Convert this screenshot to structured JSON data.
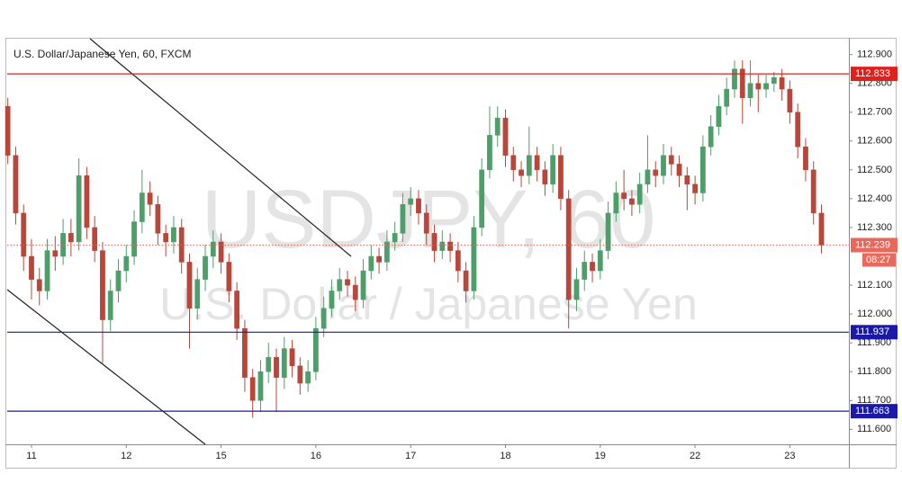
{
  "chart_data": {
    "type": "candlestick",
    "title": "U.S. Dollar/Japanese Yen, 60, FXCM",
    "watermark": "USDJPY, 60",
    "watermark_subtitle": "U.S. Dollar / Japanese Yen",
    "up_color": "#4e9e6a",
    "down_color": "#b8463a",
    "xlim": [
      -6.15,
      206.95
    ],
    "ylim": [
      111.548,
      112.955
    ],
    "xticks": [
      {
        "value": 0,
        "label": "11"
      },
      {
        "value": 24,
        "label": "12"
      },
      {
        "value": 48,
        "label": "15"
      },
      {
        "value": 72,
        "label": "16"
      },
      {
        "value": 96,
        "label": "17"
      },
      {
        "value": 120,
        "label": "18"
      },
      {
        "value": 144,
        "label": "19"
      },
      {
        "value": 168,
        "label": "22"
      },
      {
        "value": 192,
        "label": "23"
      }
    ],
    "yticks": [
      {
        "value": 112.9,
        "label": "112.900"
      },
      {
        "value": 112.8,
        "label": "112.800"
      },
      {
        "value": 112.7,
        "label": "112.700"
      },
      {
        "value": 112.6,
        "label": "112.600"
      },
      {
        "value": 112.5,
        "label": "112.500"
      },
      {
        "value": 112.4,
        "label": "112.400"
      },
      {
        "value": 112.3,
        "label": "112.300"
      },
      {
        "value": 112.1,
        "label": "112.100"
      },
      {
        "value": 112.0,
        "label": "112.000"
      },
      {
        "value": 111.9,
        "label": "111.900"
      },
      {
        "value": 111.8,
        "label": "111.800"
      },
      {
        "value": 111.7,
        "label": "111.700"
      },
      {
        "value": 111.6,
        "label": "111.600"
      }
    ],
    "hlines": [
      {
        "value": 112.833,
        "color": "#e0201c"
      },
      {
        "value": 111.937,
        "color": "#1a1aa6"
      },
      {
        "value": 111.663,
        "color": "#1a1aa6"
      }
    ],
    "last_price": {
      "value": 112.239,
      "color": "#e8685c",
      "countdown": "08:27"
    },
    "x": [
      -6,
      -4,
      -2,
      0,
      2,
      4,
      6,
      8,
      10,
      12,
      14,
      16,
      18,
      20,
      22,
      24,
      26,
      28,
      30,
      32,
      34,
      36,
      38,
      40,
      42,
      44,
      46,
      48,
      50,
      52,
      54,
      56,
      58,
      60,
      62,
      64,
      66,
      68,
      70,
      72,
      74,
      76,
      78,
      80,
      82,
      84,
      86,
      88,
      90,
      92,
      94,
      96,
      98,
      100,
      102,
      104,
      106,
      108,
      110,
      112,
      114,
      116,
      118,
      120,
      122,
      124,
      126,
      128,
      130,
      132,
      134,
      136,
      138,
      140,
      142,
      144,
      146,
      148,
      150,
      152,
      154,
      156,
      158,
      160,
      162,
      164,
      166,
      168,
      170,
      172,
      174,
      176,
      178,
      180,
      182,
      184,
      186,
      188,
      190,
      192,
      194,
      196,
      198,
      200
    ],
    "ohlc": [
      [
        112.72,
        112.75,
        112.52,
        112.55
      ],
      [
        112.55,
        112.58,
        112.31,
        112.35
      ],
      [
        112.35,
        112.38,
        112.15,
        112.2
      ],
      [
        112.2,
        112.26,
        112.05,
        112.12
      ],
      [
        112.12,
        112.16,
        112.03,
        112.08
      ],
      [
        112.08,
        112.26,
        112.05,
        112.22
      ],
      [
        112.22,
        112.27,
        112.15,
        112.2
      ],
      [
        112.2,
        112.33,
        112.17,
        112.28
      ],
      [
        112.28,
        112.33,
        112.2,
        112.25
      ],
      [
        112.25,
        112.54,
        112.22,
        112.48
      ],
      [
        112.48,
        112.51,
        112.26,
        112.3
      ],
      [
        112.3,
        112.34,
        112.18,
        112.22
      ],
      [
        112.22,
        112.25,
        111.83,
        111.98
      ],
      [
        111.98,
        112.12,
        111.94,
        112.08
      ],
      [
        112.08,
        112.19,
        112.04,
        112.15
      ],
      [
        112.15,
        112.24,
        112.11,
        112.2
      ],
      [
        112.2,
        112.36,
        112.17,
        112.32
      ],
      [
        112.32,
        112.5,
        112.28,
        112.42
      ],
      [
        112.42,
        112.46,
        112.34,
        112.38
      ],
      [
        112.38,
        112.41,
        112.24,
        112.28
      ],
      [
        112.28,
        112.31,
        112.2,
        112.25
      ],
      [
        112.25,
        112.34,
        112.21,
        112.3
      ],
      [
        112.3,
        112.33,
        112.14,
        112.18
      ],
      [
        112.18,
        112.21,
        111.88,
        112.02
      ],
      [
        112.02,
        112.16,
        111.98,
        112.12
      ],
      [
        112.12,
        112.24,
        112.08,
        112.2
      ],
      [
        112.2,
        112.29,
        112.16,
        112.25
      ],
      [
        112.25,
        112.28,
        112.14,
        112.18
      ],
      [
        112.18,
        112.21,
        112.04,
        112.08
      ],
      [
        112.08,
        112.11,
        111.91,
        111.95
      ],
      [
        111.95,
        111.98,
        111.73,
        111.78
      ],
      [
        111.78,
        111.81,
        111.64,
        111.7
      ],
      [
        111.7,
        111.84,
        111.66,
        111.8
      ],
      [
        111.8,
        111.9,
        111.76,
        111.85
      ],
      [
        111.85,
        111.88,
        111.66,
        111.78
      ],
      [
        111.78,
        111.92,
        111.74,
        111.88
      ],
      [
        111.88,
        111.91,
        111.78,
        111.82
      ],
      [
        111.82,
        111.85,
        111.72,
        111.76
      ],
      [
        111.76,
        111.84,
        111.73,
        111.8
      ],
      [
        111.8,
        111.99,
        111.77,
        111.95
      ],
      [
        111.95,
        112.06,
        111.92,
        112.02
      ],
      [
        112.02,
        112.12,
        111.99,
        112.08
      ],
      [
        112.08,
        112.16,
        112.05,
        112.12
      ],
      [
        112.12,
        112.15,
        112.06,
        112.1
      ],
      [
        112.1,
        112.13,
        112.01,
        112.05
      ],
      [
        112.05,
        112.19,
        112.02,
        112.15
      ],
      [
        112.15,
        112.24,
        112.12,
        112.2
      ],
      [
        112.2,
        112.23,
        112.14,
        112.18
      ],
      [
        112.18,
        112.29,
        112.15,
        112.25
      ],
      [
        112.25,
        112.32,
        112.22,
        112.28
      ],
      [
        112.28,
        112.42,
        112.25,
        112.38
      ],
      [
        112.38,
        112.44,
        112.34,
        112.4
      ],
      [
        112.4,
        112.43,
        112.31,
        112.35
      ],
      [
        112.35,
        112.38,
        112.24,
        112.28
      ],
      [
        112.28,
        112.31,
        112.18,
        112.22
      ],
      [
        112.22,
        112.29,
        112.19,
        112.25
      ],
      [
        112.25,
        112.28,
        112.18,
        112.22
      ],
      [
        112.22,
        112.25,
        112.11,
        112.15
      ],
      [
        112.15,
        112.18,
        112.04,
        112.08
      ],
      [
        112.08,
        112.34,
        112.05,
        112.3
      ],
      [
        112.3,
        112.54,
        112.27,
        112.5
      ],
      [
        112.5,
        112.72,
        112.47,
        112.62
      ],
      [
        112.62,
        112.72,
        112.58,
        112.68
      ],
      [
        112.68,
        112.71,
        112.51,
        112.55
      ],
      [
        112.55,
        112.58,
        112.46,
        112.5
      ],
      [
        112.5,
        112.53,
        112.44,
        112.48
      ],
      [
        112.48,
        112.65,
        112.45,
        112.55
      ],
      [
        112.55,
        112.58,
        112.46,
        112.5
      ],
      [
        112.5,
        112.53,
        112.41,
        112.45
      ],
      [
        112.45,
        112.59,
        112.42,
        112.55
      ],
      [
        112.55,
        112.58,
        112.36,
        112.4
      ],
      [
        112.4,
        112.43,
        111.95,
        112.05
      ],
      [
        112.05,
        112.16,
        112.01,
        112.12
      ],
      [
        112.12,
        112.22,
        112.08,
        112.18
      ],
      [
        112.18,
        112.21,
        112.11,
        112.15
      ],
      [
        112.15,
        112.26,
        112.12,
        112.22
      ],
      [
        112.22,
        112.39,
        112.19,
        112.35
      ],
      [
        112.35,
        112.46,
        112.32,
        112.42
      ],
      [
        112.42,
        112.5,
        112.36,
        112.4
      ],
      [
        112.4,
        112.43,
        112.34,
        112.38
      ],
      [
        112.38,
        112.49,
        112.35,
        112.45
      ],
      [
        112.45,
        112.62,
        112.42,
        112.5
      ],
      [
        112.5,
        112.53,
        112.44,
        112.48
      ],
      [
        112.48,
        112.59,
        112.45,
        112.55
      ],
      [
        112.55,
        112.58,
        112.48,
        112.52
      ],
      [
        112.52,
        112.55,
        112.44,
        112.48
      ],
      [
        112.48,
        112.51,
        112.36,
        112.45
      ],
      [
        112.45,
        112.48,
        112.38,
        112.42
      ],
      [
        112.42,
        112.62,
        112.39,
        112.58
      ],
      [
        112.58,
        112.69,
        112.55,
        112.65
      ],
      [
        112.65,
        112.76,
        112.62,
        112.72
      ],
      [
        112.72,
        112.82,
        112.69,
        112.78
      ],
      [
        112.78,
        112.88,
        112.75,
        112.85
      ],
      [
        112.85,
        112.88,
        112.66,
        112.75
      ],
      [
        112.75,
        112.88,
        112.72,
        112.8
      ],
      [
        112.8,
        112.83,
        112.7,
        112.78
      ],
      [
        112.78,
        112.83,
        112.75,
        112.8
      ],
      [
        112.8,
        112.84,
        112.77,
        112.82
      ],
      [
        112.82,
        112.85,
        112.74,
        112.78
      ],
      [
        112.78,
        112.81,
        112.66,
        112.7
      ],
      [
        112.7,
        112.73,
        112.54,
        112.58
      ],
      [
        112.58,
        112.61,
        112.46,
        112.5
      ],
      [
        112.5,
        112.53,
        112.31,
        112.35
      ],
      [
        112.35,
        112.38,
        112.21,
        112.239
      ]
    ]
  }
}
